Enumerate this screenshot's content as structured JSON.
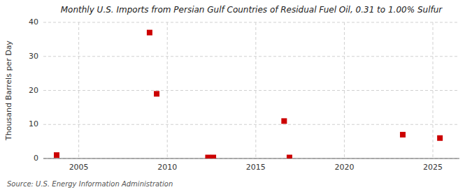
{
  "chart_data": {
    "type": "scatter",
    "title": "Monthly U.S. Imports from Persian Gulf Countries of Residual Fuel Oil, 0.31 to 1.00% Sulfur",
    "ylabel": "Thousand Barrels per Day",
    "source": "Source: U.S. Energy Information Administration",
    "x": [
      2003.75,
      2009.0,
      2009.4,
      2012.3,
      2012.6,
      2016.6,
      2016.9,
      2023.3,
      2025.4
    ],
    "values": [
      1.0,
      37.0,
      19.0,
      0.3,
      0.3,
      11.0,
      0.3,
      7.0,
      6.0
    ],
    "color": "#cc0000",
    "marker": "square",
    "xlim": [
      2003.0,
      2026.5
    ],
    "ylim": [
      0,
      40
    ],
    "xticks": [
      2005,
      2010,
      2015,
      2020,
      2025
    ],
    "yticks": [
      0,
      10,
      20,
      30,
      40
    ],
    "grid": true
  }
}
